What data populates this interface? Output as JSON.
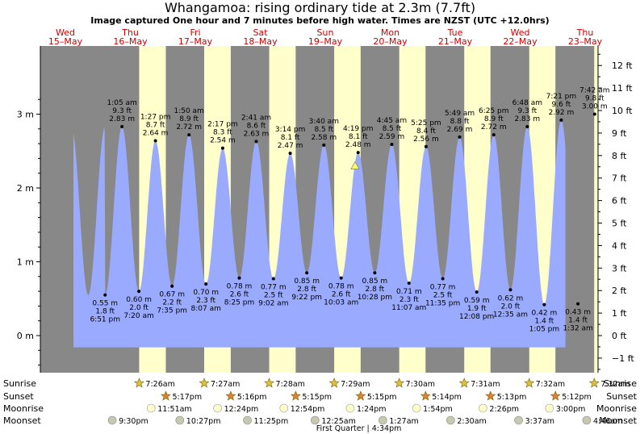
{
  "header": {
    "title": "Whangamoa: rising  ordinary tide at 2.3m (7.7ft)",
    "subtitle": "Image captured One hour and 7 minutes before high water. Times are NZST (UTC +12.0hrs)"
  },
  "colors": {
    "night": "#888888",
    "day": "#ffffcc",
    "tide_fill": "#99aaff",
    "day_label": "#cc0000",
    "current_marker": "#ffff66"
  },
  "chart_data": {
    "type": "area",
    "title": "Whangamoa: rising  ordinary tide at 2.3m (7.7ft)",
    "subtitle": "Image captured One hour and 7 minutes before high water. Times are NZST (UTC +12.0hrs)",
    "y_left_unit": "m",
    "y_left_ticks": [
      "0 m",
      "1 m",
      "2 m",
      "3 m"
    ],
    "y_left_values": [
      0,
      1,
      2,
      3
    ],
    "y_right_ticks": [
      "−1 ft",
      "0 ft",
      "1 ft",
      "2 ft",
      "3 ft",
      "4 ft",
      "5 ft",
      "6 ft",
      "7 ft",
      "8 ft",
      "9 ft",
      "10 ft",
      "11 ft",
      "12 ft"
    ],
    "y_right_values": [
      -1,
      0,
      1,
      2,
      3,
      4,
      5,
      6,
      7,
      8,
      9,
      10,
      11,
      12
    ],
    "ylim_m": [
      -0.5,
      3.55
    ],
    "day_headers": [
      {
        "day": "Wed",
        "date": "15–May"
      },
      {
        "day": "Thu",
        "date": "16–May"
      },
      {
        "day": "Fri",
        "date": "17–May"
      },
      {
        "day": "Sat",
        "date": "18–May"
      },
      {
        "day": "Sun",
        "date": "19–May"
      },
      {
        "day": "Mon",
        "date": "20–May"
      },
      {
        "day": "Tue",
        "date": "21–May"
      },
      {
        "day": "Wed",
        "date": "22–May"
      },
      {
        "day": "Thu",
        "date": "23–May"
      }
    ],
    "extremes": [
      {
        "type": "low",
        "time": "6:51 pm",
        "day": "15–May",
        "height_m": 0.55,
        "height_ft": "1.8 ft",
        "label_m": "0.55 m"
      },
      {
        "type": "high",
        "time": "1:05 am",
        "day": "16–May",
        "height_m": 2.83,
        "height_ft": "9.3 ft",
        "label_m": "2.83 m"
      },
      {
        "type": "low",
        "time": "7:20 am",
        "day": "16–May",
        "height_m": 0.6,
        "height_ft": "2.0 ft",
        "label_m": "0.60 m"
      },
      {
        "type": "high",
        "time": "1:27 pm",
        "day": "16–May",
        "height_m": 2.64,
        "height_ft": "8.7 ft",
        "label_m": "2.64 m"
      },
      {
        "type": "low",
        "time": "7:35 pm",
        "day": "16–May",
        "height_m": 0.67,
        "height_ft": "2.2 ft",
        "label_m": "0.67 m"
      },
      {
        "type": "high",
        "time": "1:50 am",
        "day": "17–May",
        "height_m": 2.72,
        "height_ft": "8.9 ft",
        "label_m": "2.72 m"
      },
      {
        "type": "low",
        "time": "8:07 am",
        "day": "17–May",
        "height_m": 0.7,
        "height_ft": "2.3 ft",
        "label_m": "0.70 m"
      },
      {
        "type": "high",
        "time": "2:17 pm",
        "day": "17–May",
        "height_m": 2.54,
        "height_ft": "8.3 ft",
        "label_m": "2.54 m"
      },
      {
        "type": "low",
        "time": "8:25 pm",
        "day": "17–May",
        "height_m": 0.78,
        "height_ft": "2.6 ft",
        "label_m": "0.78 m"
      },
      {
        "type": "high",
        "time": "2:41 am",
        "day": "18–May",
        "height_m": 2.63,
        "height_ft": "8.6 ft",
        "label_m": "2.63 m"
      },
      {
        "type": "low",
        "time": "9:02 am",
        "day": "18–May",
        "height_m": 0.77,
        "height_ft": "2.5 ft",
        "label_m": "0.77 m"
      },
      {
        "type": "high",
        "time": "3:14 pm",
        "day": "18–May",
        "height_m": 2.47,
        "height_ft": "8.1 ft",
        "label_m": "2.47 m"
      },
      {
        "type": "low",
        "time": "9:22 pm",
        "day": "18–May",
        "height_m": 0.85,
        "height_ft": "2.8 ft",
        "label_m": "0.85 m"
      },
      {
        "type": "high",
        "time": "3:40 am",
        "day": "19–May",
        "height_m": 2.58,
        "height_ft": "8.5 ft",
        "label_m": "2.58 m"
      },
      {
        "type": "low",
        "time": "10:03 am",
        "day": "19–May",
        "height_m": 0.78,
        "height_ft": "2.6 ft",
        "label_m": "0.78 m"
      },
      {
        "type": "high",
        "time": "4:19 pm",
        "day": "19–May",
        "height_m": 2.48,
        "height_ft": "8.1 ft",
        "label_m": "2.48 m"
      },
      {
        "type": "low",
        "time": "10:28 pm",
        "day": "19–May",
        "height_m": 0.85,
        "height_ft": "2.8 ft",
        "label_m": "0.85 m"
      },
      {
        "type": "high",
        "time": "4:45 am",
        "day": "20–May",
        "height_m": 2.59,
        "height_ft": "8.5 ft",
        "label_m": "2.59 m"
      },
      {
        "type": "low",
        "time": "11:07 am",
        "day": "20–May",
        "height_m": 0.71,
        "height_ft": "2.3 ft",
        "label_m": "0.71 m"
      },
      {
        "type": "high",
        "time": "5:25 pm",
        "day": "20–May",
        "height_m": 2.56,
        "height_ft": "8.4 ft",
        "label_m": "2.56 m"
      },
      {
        "type": "low",
        "time": "11:35 pm",
        "day": "20–May",
        "height_m": 0.77,
        "height_ft": "2.5 ft",
        "label_m": "0.77 m"
      },
      {
        "type": "high",
        "time": "5:49 am",
        "day": "21–May",
        "height_m": 2.69,
        "height_ft": "8.8 ft",
        "label_m": "2.69 m"
      },
      {
        "type": "low",
        "time": "12:08 pm",
        "day": "21–May",
        "height_m": 0.59,
        "height_ft": "1.9 ft",
        "label_m": "0.59 m"
      },
      {
        "type": "high",
        "time": "6:25 pm",
        "day": "21–May",
        "height_m": 2.72,
        "height_ft": "8.9 ft",
        "label_m": "2.72 m"
      },
      {
        "type": "low",
        "time": "12:35 am",
        "day": "22–May",
        "height_m": 0.62,
        "height_ft": "2.0 ft",
        "label_m": "0.62 m"
      },
      {
        "type": "high",
        "time": "6:48 am",
        "day": "22–May",
        "height_m": 2.83,
        "height_ft": "9.3 ft",
        "label_m": "2.83 m"
      },
      {
        "type": "low",
        "time": "1:05 pm",
        "day": "22–May",
        "height_m": 0.42,
        "height_ft": "1.4 ft",
        "label_m": "0.42 m"
      },
      {
        "type": "high",
        "time": "7:21 pm",
        "day": "22–May",
        "height_m": 2.92,
        "height_ft": "9.6 ft",
        "label_m": "2.92 m"
      },
      {
        "type": "low",
        "time": "1:32 am",
        "day": "23–May",
        "height_m": 0.43,
        "height_ft": "1.4 ft",
        "label_m": "0.43 m"
      },
      {
        "type": "high",
        "time": "7:42 am",
        "day": "23–May",
        "height_m": 3.0,
        "height_ft": "9.8 ft",
        "label_m": "3.00 m"
      }
    ],
    "current": {
      "height_m": 2.3,
      "height_ft": 7.7
    }
  },
  "footer": {
    "row_labels": [
      "Sunrise",
      "Sunset",
      "Moonrise",
      "Moonset"
    ],
    "sunrise": [
      "7:26am",
      "7:27am",
      "7:28am",
      "7:29am",
      "7:30am",
      "7:31am",
      "7:32am",
      "7:32am"
    ],
    "sunset": [
      "5:17pm",
      "5:16pm",
      "5:15pm",
      "5:15pm",
      "5:14pm",
      "5:13pm",
      "5:12pm"
    ],
    "moonrise": [
      "11:51am",
      "12:24pm",
      "12:54pm",
      "1:24pm",
      "1:54pm",
      "2:26pm",
      "3:00pm"
    ],
    "moonset": [
      "9:30pm",
      "10:27pm",
      "11:25pm",
      "12:25am",
      "1:27am",
      "2:30am",
      "3:37am",
      "4:46am"
    ],
    "moon_phase": "First Quarter | 4:34pm"
  }
}
